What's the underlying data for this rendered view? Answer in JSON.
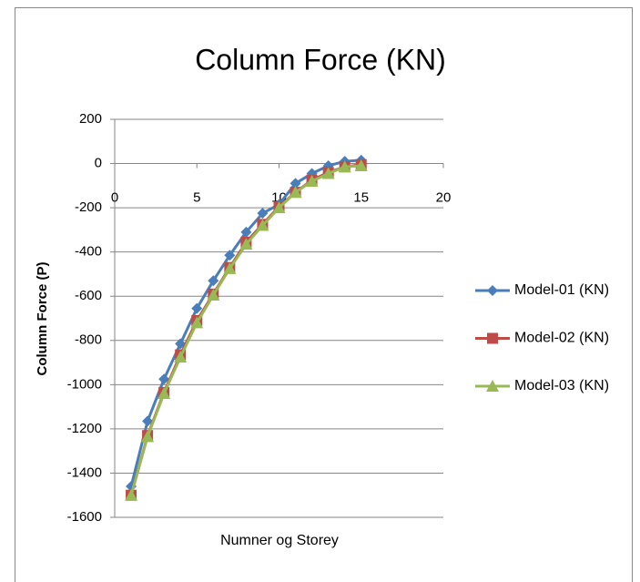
{
  "chart_data": {
    "type": "line",
    "title": "Column Force (KN)",
    "x_label": "Numner og Storey",
    "y_label": "Column Force (P)",
    "x": [
      1,
      2,
      3,
      4,
      5,
      6,
      7,
      8,
      9,
      10,
      11,
      12,
      13,
      14,
      15
    ],
    "series": [
      {
        "name": "Model-01 (KN)",
        "color": "#4a7ebb",
        "marker": "diamond",
        "values": [
          -1460,
          -1165,
          -975,
          -815,
          -655,
          -530,
          -415,
          -310,
          -225,
          -185,
          -90,
          -45,
          -10,
          10,
          15
        ]
      },
      {
        "name": "Model-02 (KN)",
        "color": "#be4b48",
        "marker": "square",
        "values": [
          -1500,
          -1230,
          -1035,
          -865,
          -710,
          -590,
          -470,
          -355,
          -275,
          -195,
          -130,
          -75,
          -40,
          -15,
          -5
        ]
      },
      {
        "name": "Model-03 (KN)",
        "color": "#98b954",
        "marker": "triangle",
        "values": [
          -1500,
          -1235,
          -1040,
          -875,
          -720,
          -595,
          -475,
          -365,
          -280,
          -200,
          -130,
          -80,
          -45,
          -15,
          -10
        ]
      }
    ],
    "xlim": [
      0,
      20
    ],
    "xticks": [
      0,
      5,
      10,
      15,
      20
    ],
    "ylim": [
      -1600,
      200
    ],
    "yticks": [
      200,
      0,
      -200,
      -400,
      -600,
      -800,
      -1000,
      -1200,
      -1400,
      -1600
    ],
    "grid": true,
    "legend": "right"
  }
}
